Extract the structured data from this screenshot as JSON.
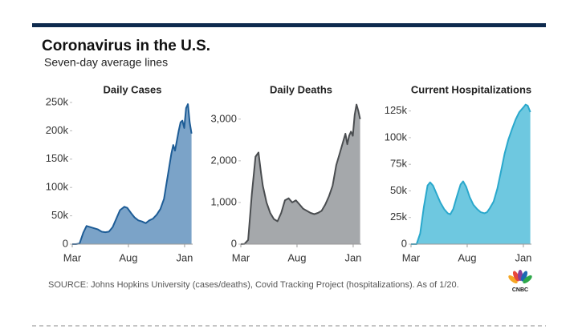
{
  "header": {
    "title": "Coronavirus in the U.S.",
    "subtitle": "Seven-day average lines"
  },
  "source": "SOURCE: Johns Hopkins University (cases/deaths), Covid Tracking Project (hospitalizations). As of 1/20.",
  "logo": "CNBC",
  "chart_data": [
    {
      "type": "area",
      "title": "Daily Cases",
      "color": "#7ba3c8",
      "line_color": "#1d5c96",
      "x": [
        0,
        10,
        20,
        30,
        39,
        50,
        60,
        70,
        80,
        90,
        100,
        110,
        120,
        130,
        142,
        150,
        160,
        170,
        180,
        190,
        200,
        210,
        220,
        230,
        240,
        250,
        260,
        270,
        275,
        280,
        290,
        295,
        300,
        305,
        310,
        315,
        320,
        325
      ],
      "values": [
        0,
        0,
        1000,
        20000,
        32000,
        30000,
        28000,
        26000,
        22000,
        21000,
        22000,
        30000,
        45000,
        60000,
        66000,
        64000,
        55000,
        47000,
        42000,
        40000,
        37000,
        42000,
        45000,
        52000,
        62000,
        80000,
        120000,
        160000,
        175000,
        165000,
        200000,
        215000,
        218000,
        205000,
        240000,
        247000,
        215000,
        195000
      ],
      "xlim": [
        0,
        328
      ],
      "xticks": [
        {
          "value": 0,
          "label": "Mar"
        },
        {
          "value": 153,
          "label": "Aug"
        },
        {
          "value": 306,
          "label": "Jan"
        }
      ],
      "ylim": [
        0,
        250000
      ],
      "yticks": [
        0,
        {
          "value": 50000,
          "label": "50k"
        },
        {
          "value": 100000,
          "label": "100k"
        },
        {
          "value": 150000,
          "label": "150k"
        },
        {
          "value": 200000,
          "label": "200k"
        },
        {
          "value": 250000,
          "label": "250k"
        }
      ]
    },
    {
      "type": "area",
      "title": "Daily Deaths",
      "color": "#a5a8ab",
      "line_color": "#4a4d50",
      "x": [
        0,
        10,
        20,
        30,
        40,
        48,
        55,
        60,
        70,
        80,
        90,
        100,
        110,
        120,
        130,
        140,
        150,
        160,
        170,
        180,
        190,
        200,
        210,
        220,
        230,
        240,
        250,
        260,
        270,
        280,
        285,
        290,
        295,
        300,
        305,
        310,
        315,
        320,
        325
      ],
      "values": [
        0,
        5,
        100,
        1200,
        2100,
        2200,
        1700,
        1400,
        1000,
        750,
        600,
        550,
        750,
        1050,
        1100,
        1000,
        1050,
        950,
        850,
        800,
        750,
        720,
        750,
        800,
        950,
        1150,
        1400,
        1900,
        2200,
        2500,
        2650,
        2400,
        2600,
        2700,
        2600,
        3100,
        3350,
        3200,
        3000
      ],
      "xlim": [
        0,
        328
      ],
      "xticks": [
        {
          "value": 0,
          "label": "Mar"
        },
        {
          "value": 153,
          "label": "Aug"
        },
        {
          "value": 306,
          "label": "Jan"
        }
      ],
      "ylim": [
        0,
        3400
      ],
      "yticks": [
        0,
        {
          "value": 1000,
          "label": "1,000"
        },
        {
          "value": 2000,
          "label": "2,000"
        },
        {
          "value": 3000,
          "label": "3,000"
        }
      ]
    },
    {
      "type": "area",
      "title": "Current Hospitalizations",
      "color": "#6ec8e0",
      "line_color": "#2aa8cc",
      "x": [
        0,
        15,
        25,
        35,
        45,
        52,
        60,
        70,
        80,
        90,
        100,
        107,
        115,
        125,
        135,
        142,
        150,
        160,
        170,
        180,
        190,
        200,
        207,
        215,
        225,
        235,
        245,
        255,
        265,
        275,
        285,
        295,
        305,
        312,
        318,
        325
      ],
      "values": [
        0,
        0,
        10000,
        35000,
        55000,
        58000,
        55000,
        47000,
        39000,
        33000,
        29000,
        28000,
        33000,
        45000,
        56000,
        59000,
        54000,
        44000,
        37000,
        33000,
        30000,
        29000,
        30000,
        34000,
        40000,
        52000,
        68000,
        85000,
        98000,
        108000,
        117000,
        124000,
        128000,
        131000,
        130000,
        124000
      ],
      "xlim": [
        0,
        328
      ],
      "xticks": [
        {
          "value": 0,
          "label": "Mar"
        },
        {
          "value": 153,
          "label": "Aug"
        },
        {
          "value": 306,
          "label": "Jan"
        }
      ],
      "ylim": [
        0,
        133000
      ],
      "yticks": [
        0,
        {
          "value": 25000,
          "label": "25k"
        },
        {
          "value": 50000,
          "label": "50k"
        },
        {
          "value": 75000,
          "label": "75k"
        },
        {
          "value": 100000,
          "label": "100k"
        },
        {
          "value": 125000,
          "label": "125k"
        }
      ]
    }
  ]
}
